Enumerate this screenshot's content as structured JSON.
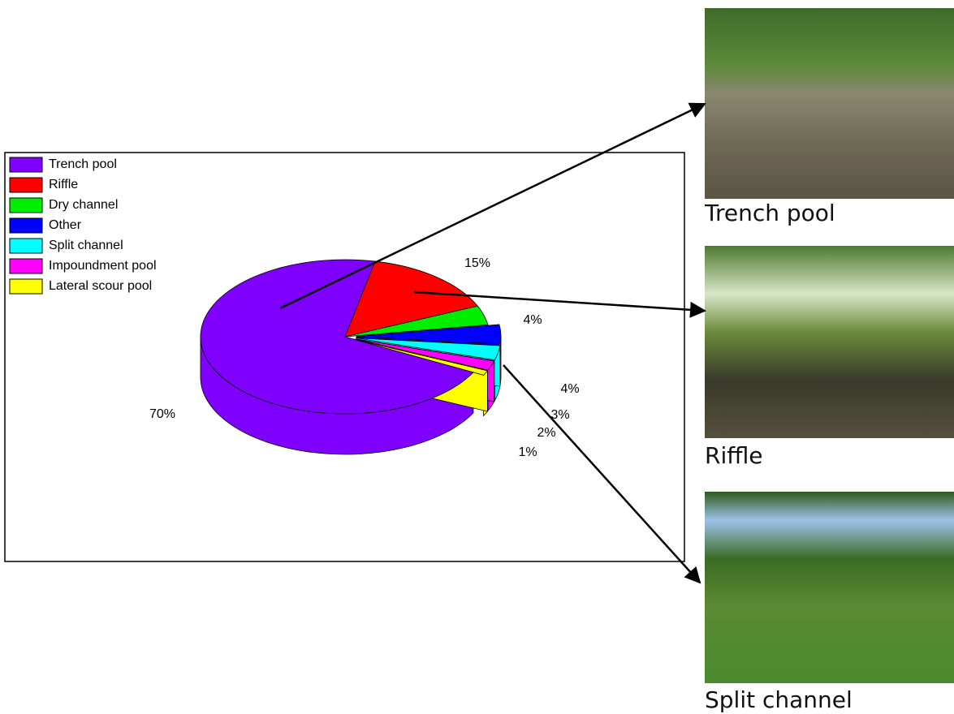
{
  "chart_data": {
    "type": "pie",
    "categories": [
      "Trench pool",
      "Riffle",
      "Dry channel",
      "Other",
      "Split channel",
      "Impoundment pool",
      "Lateral scour pool"
    ],
    "values": [
      70,
      15,
      4,
      4,
      3,
      2,
      1
    ],
    "value_labels": [
      "70%",
      "15%",
      "4%",
      "4%",
      "3%",
      "2%",
      "1%"
    ],
    "colors": [
      "#8000ff",
      "#ff0000",
      "#00ee00",
      "#0000ff",
      "#00ffff",
      "#ff00ff",
      "#ffff00"
    ],
    "legend": "upper left",
    "three_d": true
  },
  "photos": [
    {
      "caption": "Trench pool"
    },
    {
      "caption": "Riffle"
    },
    {
      "caption": "Split channel"
    }
  ]
}
